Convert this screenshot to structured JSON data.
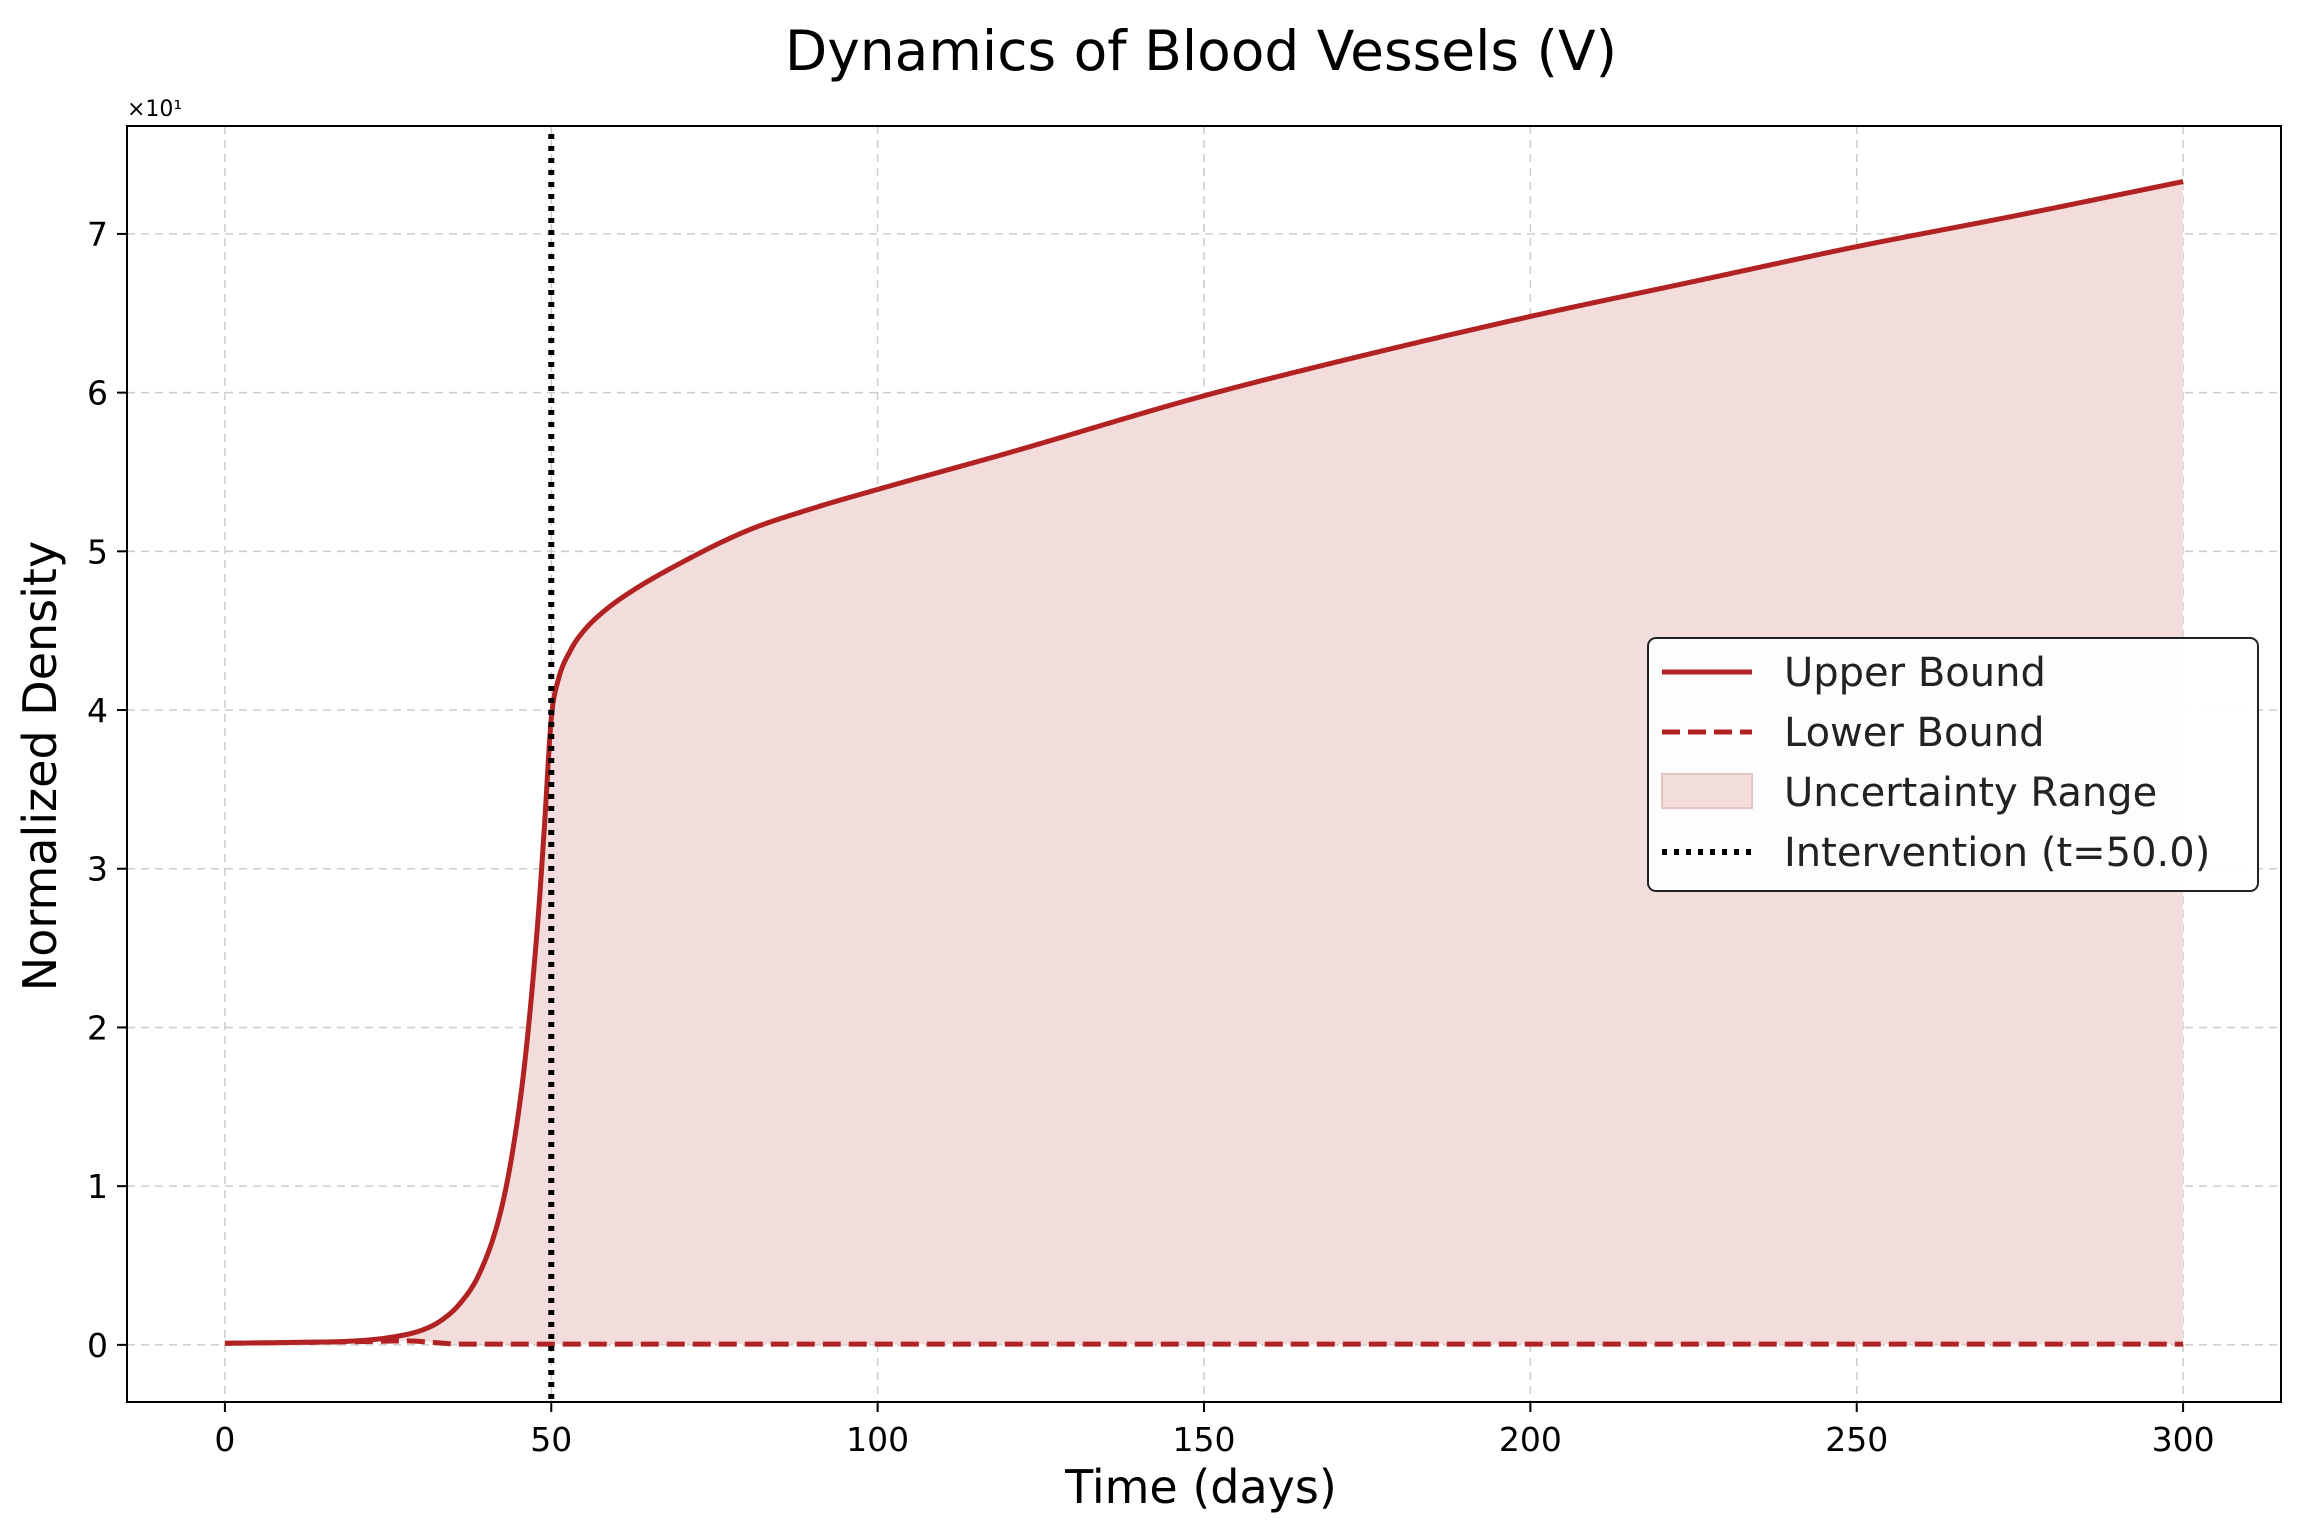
{
  "chart_data": {
    "type": "line",
    "title": "Dynamics of Blood Vessels (V)",
    "xlabel": "Time (days)",
    "ylabel": "Normalized Density",
    "y_offset_label": "×10¹",
    "xlim": [
      -15,
      315
    ],
    "ylim": [
      -0.36,
      7.68
    ],
    "y_scale_factor": 10,
    "xticks": [
      0,
      50,
      100,
      150,
      200,
      250,
      300
    ],
    "yticks": [
      0,
      1,
      2,
      3,
      4,
      5,
      6,
      7
    ],
    "grid": true,
    "legend_position": "center-right",
    "colors": {
      "line": "#b22222",
      "fill": "#f2dcdc",
      "intervention": "#000000"
    },
    "series": [
      {
        "name": "Upper Bound",
        "style": "solid",
        "x": [
          0,
          10,
          20,
          25,
          30,
          33,
          36,
          39,
          42,
          44,
          46,
          48,
          49,
          50,
          51,
          53,
          55,
          58,
          62,
          70,
          80,
          90,
          100,
          120,
          150,
          175,
          200,
          225,
          250,
          275,
          300
        ],
        "values": [
          0.01,
          0.015,
          0.025,
          0.045,
          0.09,
          0.15,
          0.26,
          0.45,
          0.8,
          1.2,
          1.8,
          2.7,
          3.3,
          3.95,
          4.18,
          4.38,
          4.5,
          4.62,
          4.74,
          4.93,
          5.13,
          5.27,
          5.39,
          5.62,
          5.98,
          6.24,
          6.48,
          6.7,
          6.92,
          7.12,
          7.33
        ]
      },
      {
        "name": "Lower Bound",
        "style": "dashed",
        "x": [
          0,
          10,
          20,
          28,
          32,
          36,
          40,
          50,
          100,
          150,
          200,
          250,
          300
        ],
        "values": [
          0.01,
          0.015,
          0.02,
          0.025,
          0.015,
          0.005,
          0.005,
          0.005,
          0.005,
          0.005,
          0.005,
          0.005,
          0.005
        ]
      }
    ],
    "fill_between": {
      "name": "Uncertainty Range"
    },
    "vline": {
      "name": "Intervention (t=50.0)",
      "x": 50
    }
  }
}
